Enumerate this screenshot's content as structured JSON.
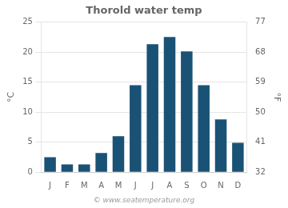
{
  "chart_data": {
    "type": "bar",
    "title": "Thorold water temp",
    "categories": [
      "J",
      "F",
      "M",
      "A",
      "M",
      "J",
      "J",
      "A",
      "S",
      "O",
      "N",
      "D"
    ],
    "values": [
      2.5,
      1.3,
      1.3,
      3.2,
      6.0,
      14.5,
      21.3,
      22.5,
      20.1,
      14.5,
      8.8,
      4.9
    ],
    "color": "#1a5276",
    "ylabel": "°C",
    "y2label": "°F",
    "ylim": [
      0,
      25
    ],
    "yticks": [
      0,
      5,
      10,
      15,
      20,
      25
    ],
    "y2lim": [
      32,
      77
    ],
    "y2ticks": [
      32,
      41,
      50,
      59,
      68,
      77
    ],
    "grid": true,
    "annotations": [
      "© www.seatemperature.org"
    ]
  }
}
